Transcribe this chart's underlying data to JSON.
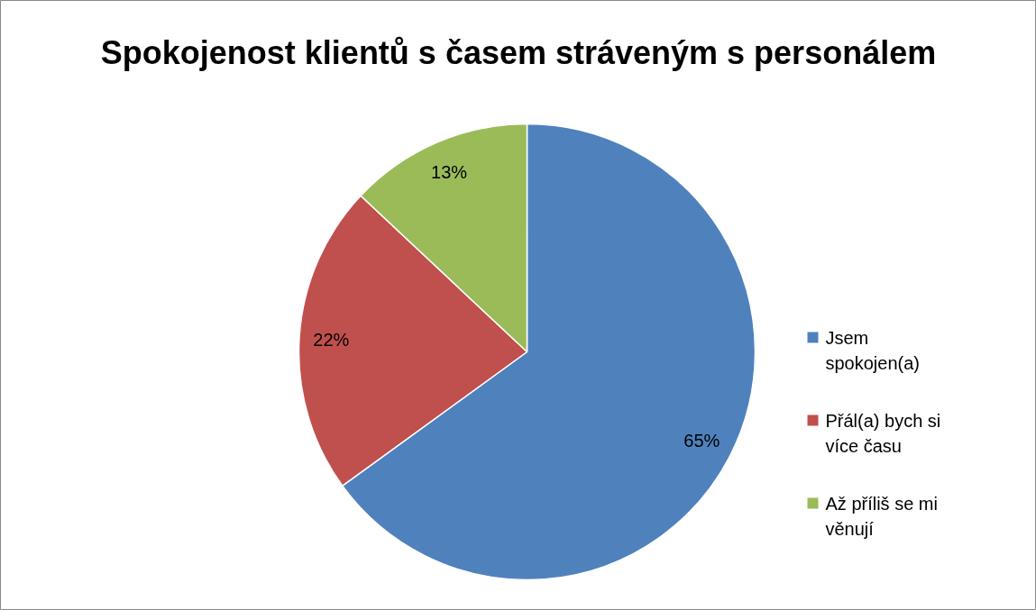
{
  "chart_data": {
    "type": "pie",
    "title": "Spokojenost klientů s časem stráveným s personálem",
    "categories": [
      "Jsem spokojen(a)",
      "Přál(a) bych si více času",
      "Až příliš se mi věnují"
    ],
    "values": [
      65,
      22,
      13
    ],
    "colors": [
      "#4f81bd",
      "#c0504d",
      "#9bbb59"
    ],
    "value_labels": [
      "65%",
      "22%",
      "13%"
    ],
    "legend": "right"
  }
}
